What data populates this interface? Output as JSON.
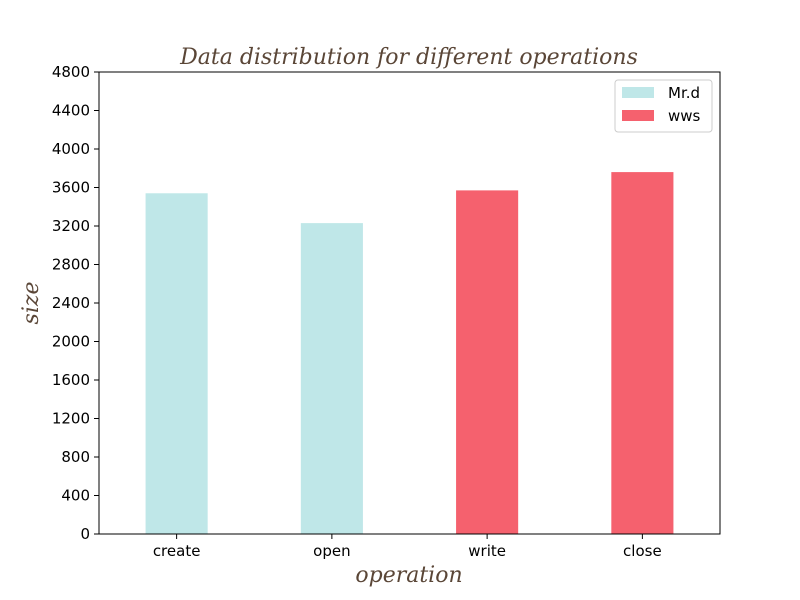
{
  "chart_data": {
    "type": "bar",
    "title": "Data distribution for different operations",
    "xlabel": "operation",
    "ylabel": "size",
    "categories": [
      "create",
      "open",
      "write",
      "close"
    ],
    "ylim": [
      0,
      4800
    ],
    "yticks": [
      0,
      400,
      800,
      1200,
      1600,
      2000,
      2400,
      2800,
      3200,
      3600,
      4000,
      4400,
      4800
    ],
    "grid": false,
    "legend_position": "top-right",
    "series": [
      {
        "name": "Mr.d",
        "color": "#bfe7e8",
        "values": [
          3540,
          3230,
          null,
          null
        ]
      },
      {
        "name": "wws",
        "color": "#f5616e",
        "values": [
          null,
          null,
          3570,
          3760
        ]
      }
    ]
  }
}
